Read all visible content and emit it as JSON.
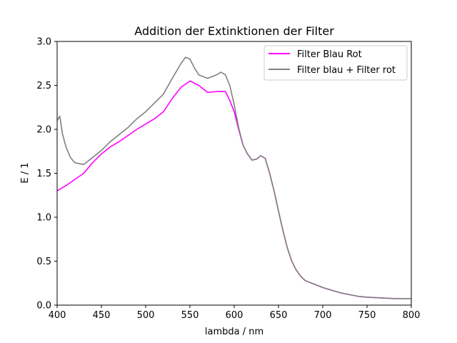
{
  "chart_data": {
    "type": "line",
    "title": "Addition der Extinktionen der Filter",
    "xlabel": "lambda / nm",
    "ylabel": "E / 1",
    "xlim": [
      400,
      800
    ],
    "ylim": [
      0,
      3.0
    ],
    "xticks": [
      400,
      450,
      500,
      550,
      600,
      650,
      700,
      750,
      800
    ],
    "yticks": [
      0.0,
      0.5,
      1.0,
      1.5,
      2.0,
      2.5,
      3.0
    ],
    "xtick_labels": [
      "400",
      "450",
      "500",
      "550",
      "600",
      "650",
      "700",
      "750",
      "800"
    ],
    "ytick_labels": [
      "0.0",
      "0.5",
      "1.0",
      "1.5",
      "2.0",
      "2.5",
      "3.0"
    ],
    "grid": false,
    "legend_position": "top-right",
    "series": [
      {
        "name": "Filter Blau Rot",
        "color": "#ff00ff",
        "points": [
          [
            400,
            1.3
          ],
          [
            410,
            1.36
          ],
          [
            420,
            1.43
          ],
          [
            430,
            1.5
          ],
          [
            440,
            1.62
          ],
          [
            450,
            1.72
          ],
          [
            460,
            1.8
          ],
          [
            470,
            1.86
          ],
          [
            480,
            1.93
          ],
          [
            490,
            2.0
          ],
          [
            500,
            2.06
          ],
          [
            510,
            2.12
          ],
          [
            520,
            2.2
          ],
          [
            530,
            2.35
          ],
          [
            540,
            2.48
          ],
          [
            550,
            2.55
          ],
          [
            560,
            2.5
          ],
          [
            570,
            2.42
          ],
          [
            580,
            2.43
          ],
          [
            590,
            2.43
          ],
          [
            595,
            2.33
          ],
          [
            600,
            2.2
          ],
          [
            605,
            2.0
          ],
          [
            610,
            1.82
          ],
          [
            615,
            1.72
          ],
          [
            620,
            1.65
          ],
          [
            625,
            1.66
          ],
          [
            630,
            1.7
          ],
          [
            635,
            1.67
          ],
          [
            640,
            1.5
          ],
          [
            645,
            1.3
          ],
          [
            650,
            1.07
          ],
          [
            655,
            0.85
          ],
          [
            660,
            0.65
          ],
          [
            665,
            0.5
          ],
          [
            670,
            0.4
          ],
          [
            675,
            0.33
          ],
          [
            680,
            0.28
          ],
          [
            690,
            0.24
          ],
          [
            700,
            0.2
          ],
          [
            710,
            0.17
          ],
          [
            720,
            0.14
          ],
          [
            730,
            0.12
          ],
          [
            740,
            0.1
          ],
          [
            750,
            0.09
          ],
          [
            760,
            0.085
          ],
          [
            770,
            0.08
          ],
          [
            780,
            0.075
          ],
          [
            790,
            0.075
          ],
          [
            800,
            0.075
          ]
        ]
      },
      {
        "name": "Filter blau + Filter rot",
        "color": "#808080",
        "points": [
          [
            400,
            2.1
          ],
          [
            403,
            2.15
          ],
          [
            406,
            1.95
          ],
          [
            410,
            1.8
          ],
          [
            415,
            1.68
          ],
          [
            420,
            1.62
          ],
          [
            430,
            1.6
          ],
          [
            440,
            1.68
          ],
          [
            450,
            1.76
          ],
          [
            460,
            1.86
          ],
          [
            470,
            1.94
          ],
          [
            480,
            2.02
          ],
          [
            490,
            2.12
          ],
          [
            500,
            2.2
          ],
          [
            510,
            2.3
          ],
          [
            520,
            2.4
          ],
          [
            530,
            2.58
          ],
          [
            540,
            2.75
          ],
          [
            545,
            2.82
          ],
          [
            550,
            2.8
          ],
          [
            555,
            2.7
          ],
          [
            560,
            2.62
          ],
          [
            570,
            2.58
          ],
          [
            580,
            2.62
          ],
          [
            585,
            2.65
          ],
          [
            590,
            2.62
          ],
          [
            595,
            2.5
          ],
          [
            600,
            2.28
          ],
          [
            605,
            2.02
          ],
          [
            610,
            1.82
          ],
          [
            615,
            1.72
          ],
          [
            620,
            1.65
          ],
          [
            625,
            1.66
          ],
          [
            630,
            1.7
          ],
          [
            635,
            1.67
          ],
          [
            640,
            1.5
          ],
          [
            645,
            1.3
          ],
          [
            650,
            1.07
          ],
          [
            655,
            0.85
          ],
          [
            660,
            0.65
          ],
          [
            665,
            0.5
          ],
          [
            670,
            0.4
          ],
          [
            675,
            0.33
          ],
          [
            680,
            0.28
          ],
          [
            690,
            0.24
          ],
          [
            700,
            0.2
          ],
          [
            710,
            0.17
          ],
          [
            720,
            0.14
          ],
          [
            730,
            0.12
          ],
          [
            740,
            0.1
          ],
          [
            750,
            0.09
          ],
          [
            760,
            0.085
          ],
          [
            770,
            0.08
          ],
          [
            780,
            0.075
          ],
          [
            790,
            0.075
          ],
          [
            800,
            0.075
          ]
        ]
      }
    ]
  }
}
